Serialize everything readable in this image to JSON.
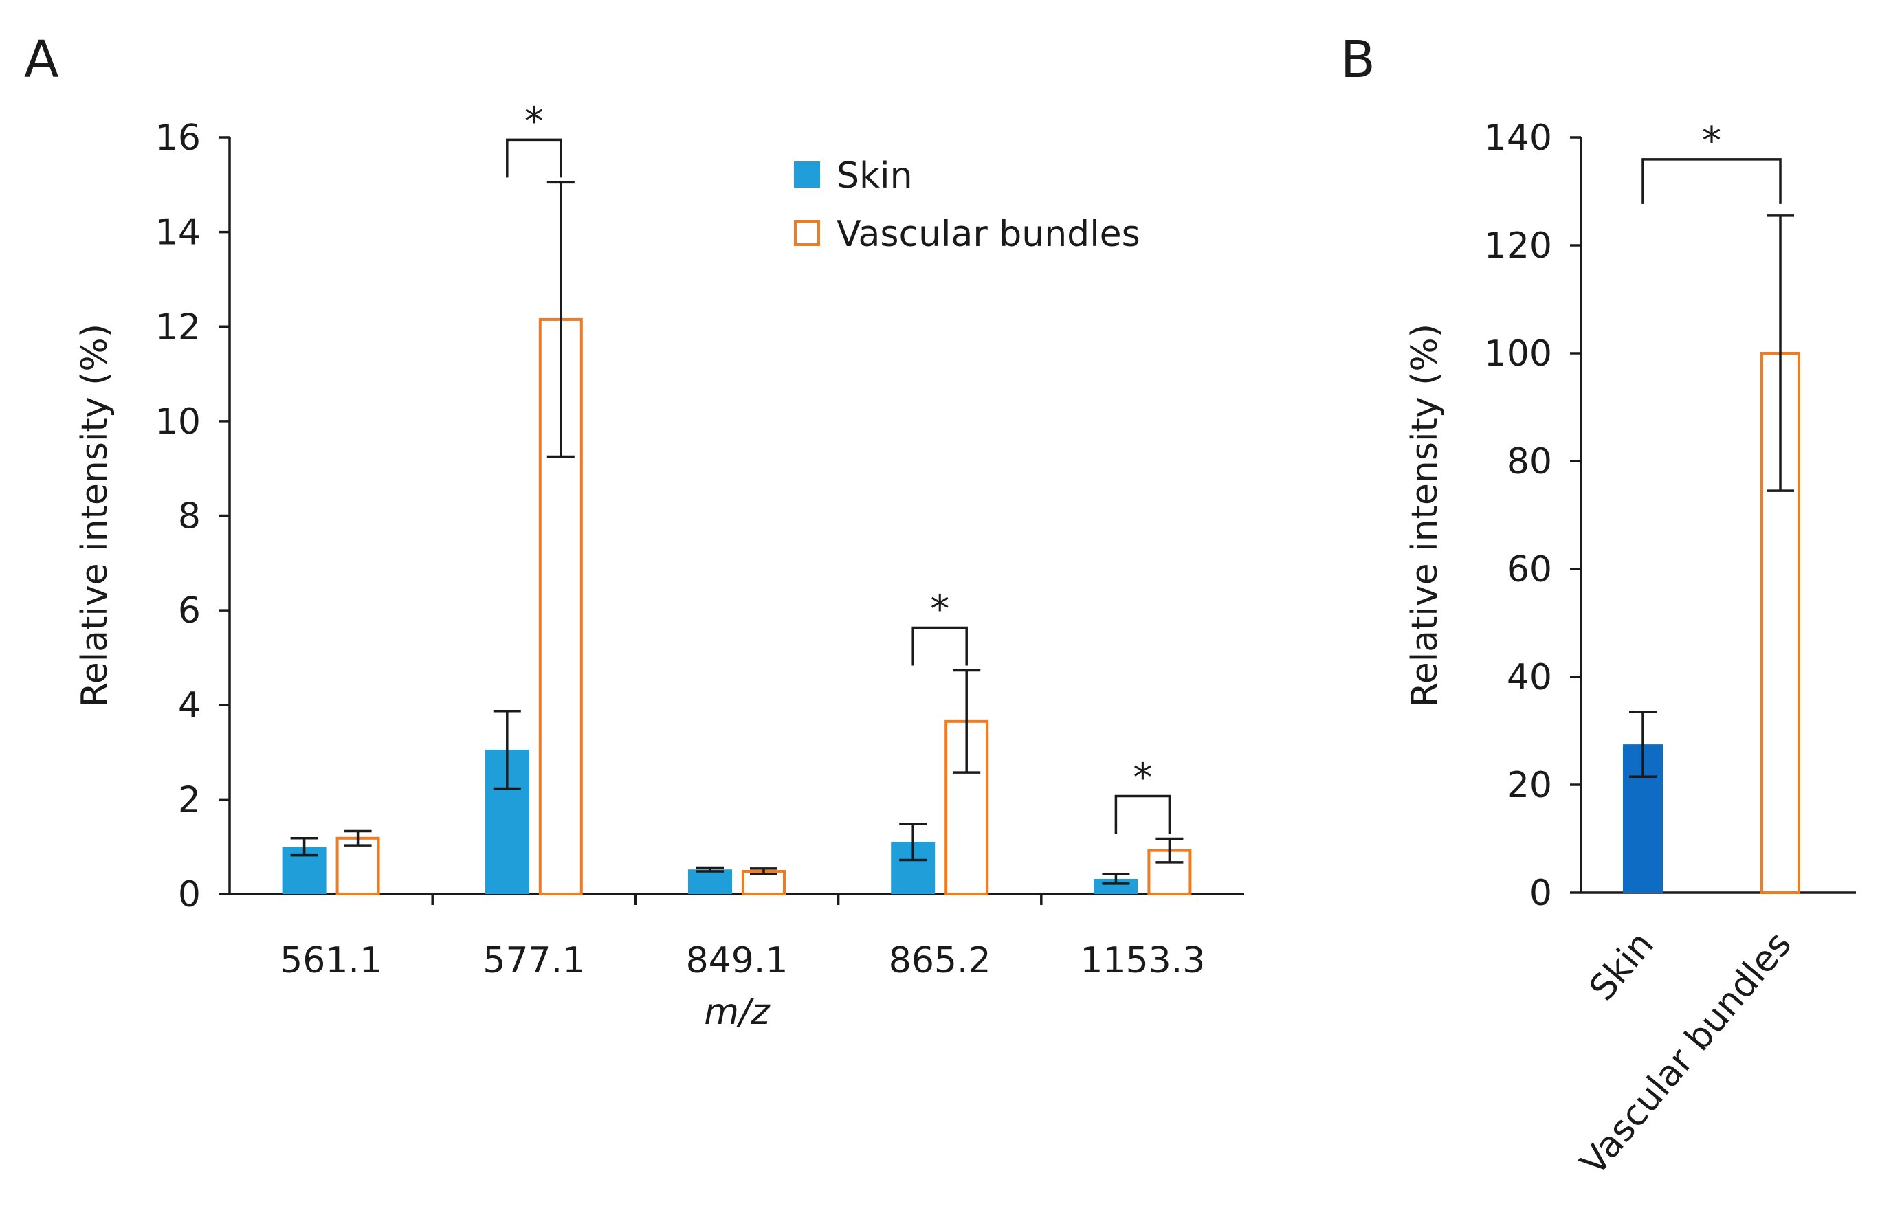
{
  "chart_data": [
    {
      "panel_label": "A",
      "type": "bar",
      "xlabel": "m/z",
      "ylabel": "Relative intensity (%)",
      "ylim": [
        0,
        16
      ],
      "yticks": [
        0,
        2,
        4,
        6,
        8,
        10,
        12,
        14,
        16
      ],
      "categories": [
        "561.1",
        "577.1",
        "849.1",
        "865.2",
        "1153.3"
      ],
      "series": [
        {
          "name": "Skin",
          "style": "filled",
          "color": "#1f9ed9",
          "values": [
            1.0,
            3.05,
            0.52,
            1.1,
            0.32
          ],
          "errors": [
            0.18,
            0.82,
            0.04,
            0.38,
            0.1
          ]
        },
        {
          "name": "Vascular bundles",
          "style": "outline",
          "color": "#f07c22",
          "values": [
            1.18,
            12.15,
            0.48,
            3.65,
            0.92
          ],
          "errors": [
            0.15,
            2.9,
            0.06,
            1.08,
            0.25
          ]
        }
      ],
      "significance": [
        {
          "category": "577.1",
          "label": "*"
        },
        {
          "category": "865.2",
          "label": "*"
        },
        {
          "category": "1153.3",
          "label": "*"
        }
      ],
      "legend_position": "top-right",
      "grid": false
    },
    {
      "panel_label": "B",
      "type": "bar",
      "xlabel": "",
      "ylabel": "Relative intensity (%)",
      "ylim": [
        0,
        140
      ],
      "yticks": [
        0,
        20,
        40,
        60,
        80,
        100,
        120,
        140
      ],
      "categories": [
        "Skin",
        "Vascular bundles"
      ],
      "bars": [
        {
          "category": "Skin",
          "value": 27.5,
          "error": 6.0,
          "style": "filled",
          "color": "#0f6cc4"
        },
        {
          "category": "Vascular bundles",
          "value": 100,
          "error": 25.5,
          "style": "outline",
          "color": "#f07c22"
        }
      ],
      "significance": [
        {
          "label": "*"
        }
      ],
      "grid": false
    }
  ]
}
